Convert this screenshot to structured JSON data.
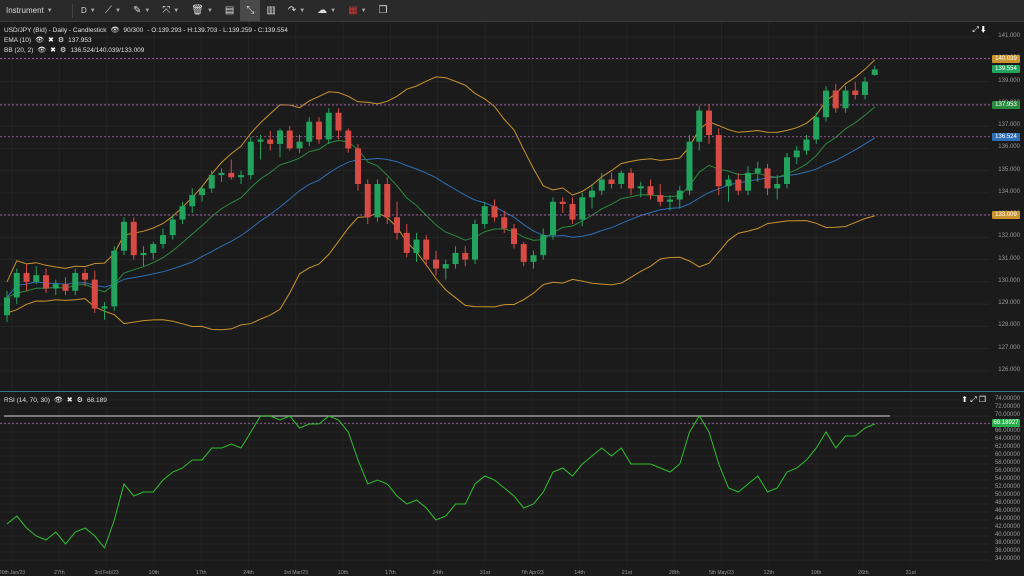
{
  "toolbar": {
    "instrument": "Instrument",
    "timeframe": "D",
    "icons": [
      "line-tool-icon",
      "pencil-icon",
      "crosshair-icon",
      "trash-icon",
      "layout-icon",
      "fit-icon",
      "bar-chart-icon",
      "share-icon",
      "weather-icon",
      "flag-icon",
      "popout-icon"
    ]
  },
  "main": {
    "legend": {
      "symbol": "USD/JPY (Bid) - Daily - Candlestick",
      "count": "90/300",
      "ohlc": "- O:139.293 - H:139.703 - L:139.259 - C:139.554"
    },
    "ema": {
      "label": "EMA (10)",
      "value": "137.953"
    },
    "bb": {
      "label": "BB (20, 2)",
      "value": "136.524/140.039/133.009"
    },
    "axis": [
      "141.000",
      "140.000",
      "139.000",
      "138.000",
      "137.000",
      "136.000",
      "135.000",
      "134.000",
      "133.000",
      "132.000",
      "131.000",
      "130.000",
      "129.000",
      "128.000",
      "127.000",
      "126.000"
    ],
    "tags": {
      "upper": {
        "text": "140.039",
        "color": "#c9932d"
      },
      "close": {
        "text": "139.554",
        "color": "#22a35e"
      },
      "ema": {
        "text": "137.953",
        "color": "#2a8a3e"
      },
      "mid": {
        "text": "136.524",
        "color": "#2e6fb5"
      },
      "lower": {
        "text": "133.009",
        "color": "#c9932d"
      }
    }
  },
  "rsi": {
    "legend": {
      "label": "RSI (14, 70, 30)",
      "value": "68.189"
    },
    "axis": [
      "74.00000",
      "72.00000",
      "70.00000",
      "68.00000",
      "66.00000",
      "64.00000",
      "62.00000",
      "60.00000",
      "58.00000",
      "56.00000",
      "54.00000",
      "52.00000",
      "50.00000",
      "48.00000",
      "46.00000",
      "44.00000",
      "42.00000",
      "40.00000",
      "38.00000",
      "36.00000",
      "34.00000"
    ],
    "tag": {
      "text": "68.18927",
      "color": "#28b14a"
    }
  },
  "dates": [
    {
      "d": "20th",
      "m": "Jan/23"
    },
    {
      "d": "27th",
      "m": ""
    },
    {
      "d": "3rd",
      "m": "Feb/23"
    },
    {
      "d": "10th",
      "m": ""
    },
    {
      "d": "17th",
      "m": ""
    },
    {
      "d": "24th",
      "m": ""
    },
    {
      "d": "3rd",
      "m": "Mar/23"
    },
    {
      "d": "10th",
      "m": ""
    },
    {
      "d": "17th",
      "m": ""
    },
    {
      "d": "24th",
      "m": ""
    },
    {
      "d": "31st",
      "m": ""
    },
    {
      "d": "7th",
      "m": "Apr/23"
    },
    {
      "d": "14th",
      "m": ""
    },
    {
      "d": "21st",
      "m": ""
    },
    {
      "d": "28th",
      "m": ""
    },
    {
      "d": "5th",
      "m": "May/23"
    },
    {
      "d": "12th",
      "m": ""
    },
    {
      "d": "19th",
      "m": ""
    },
    {
      "d": "26th",
      "m": ""
    },
    {
      "d": "31st",
      "m": ""
    }
  ],
  "chart_data": {
    "type": "candlestick",
    "price_range": [
      125.5,
      141.5
    ],
    "candles": [
      [
        128.5,
        129.6,
        128.2,
        129.3
      ],
      [
        129.3,
        130.6,
        129.0,
        130.4
      ],
      [
        130.4,
        130.8,
        129.6,
        130.0
      ],
      [
        130.0,
        130.7,
        129.9,
        130.3
      ],
      [
        130.3,
        130.6,
        129.5,
        129.7
      ],
      [
        129.7,
        130.1,
        129.4,
        129.9
      ],
      [
        129.9,
        130.2,
        129.4,
        129.6
      ],
      [
        129.6,
        130.6,
        129.4,
        130.4
      ],
      [
        130.4,
        130.6,
        129.8,
        130.1
      ],
      [
        130.1,
        130.5,
        128.6,
        128.8
      ],
      [
        128.8,
        129.1,
        128.3,
        128.9
      ],
      [
        128.9,
        131.6,
        128.7,
        131.4
      ],
      [
        131.4,
        132.9,
        131.2,
        132.7
      ],
      [
        132.7,
        132.9,
        131.0,
        131.2
      ],
      [
        131.2,
        131.6,
        130.7,
        131.3
      ],
      [
        131.3,
        131.8,
        131.0,
        131.7
      ],
      [
        131.7,
        132.4,
        131.5,
        132.1
      ],
      [
        132.1,
        133.0,
        131.9,
        132.8
      ],
      [
        132.8,
        133.6,
        132.6,
        133.4
      ],
      [
        133.4,
        134.2,
        133.1,
        133.9
      ],
      [
        133.9,
        134.3,
        133.6,
        134.2
      ],
      [
        134.2,
        135.0,
        134.0,
        134.8
      ],
      [
        134.8,
        135.1,
        134.5,
        134.9
      ],
      [
        134.9,
        135.5,
        134.6,
        134.7
      ],
      [
        134.7,
        135.0,
        134.4,
        134.8
      ],
      [
        134.8,
        136.5,
        134.6,
        136.3
      ],
      [
        136.3,
        136.6,
        135.5,
        136.4
      ],
      [
        136.4,
        136.8,
        135.9,
        136.2
      ],
      [
        136.2,
        136.9,
        135.6,
        136.8
      ],
      [
        136.8,
        137.0,
        135.9,
        136.0
      ],
      [
        136.0,
        136.6,
        135.8,
        136.3
      ],
      [
        136.3,
        137.4,
        136.1,
        137.2
      ],
      [
        137.2,
        137.4,
        136.2,
        136.4
      ],
      [
        136.4,
        137.8,
        136.2,
        137.6
      ],
      [
        137.6,
        137.8,
        136.4,
        136.8
      ],
      [
        136.8,
        136.9,
        135.8,
        136.0
      ],
      [
        136.0,
        136.2,
        134.1,
        134.4
      ],
      [
        134.4,
        134.6,
        132.6,
        132.9
      ],
      [
        132.9,
        134.6,
        132.7,
        134.4
      ],
      [
        134.4,
        134.7,
        132.6,
        132.9
      ],
      [
        132.9,
        133.6,
        131.9,
        132.2
      ],
      [
        132.2,
        132.6,
        131.1,
        131.3
      ],
      [
        131.3,
        132.2,
        130.9,
        131.9
      ],
      [
        131.9,
        132.1,
        130.7,
        131.0
      ],
      [
        131.0,
        131.4,
        130.3,
        130.6
      ],
      [
        130.6,
        131.0,
        130.1,
        130.8
      ],
      [
        130.8,
        131.6,
        130.6,
        131.3
      ],
      [
        131.3,
        131.6,
        130.7,
        131.0
      ],
      [
        131.0,
        132.8,
        130.8,
        132.6
      ],
      [
        132.6,
        133.6,
        132.4,
        133.4
      ],
      [
        133.4,
        133.7,
        132.7,
        132.9
      ],
      [
        132.9,
        133.2,
        132.2,
        132.4
      ],
      [
        132.4,
        132.6,
        131.5,
        131.7
      ],
      [
        131.7,
        131.8,
        130.7,
        130.9
      ],
      [
        130.9,
        131.4,
        130.6,
        131.2
      ],
      [
        131.2,
        132.4,
        131.0,
        132.1
      ],
      [
        132.1,
        133.8,
        131.9,
        133.6
      ],
      [
        133.6,
        133.8,
        133.1,
        133.5
      ],
      [
        133.5,
        133.8,
        132.6,
        132.8
      ],
      [
        132.8,
        134.0,
        132.5,
        133.8
      ],
      [
        133.8,
        134.4,
        133.3,
        134.1
      ],
      [
        134.1,
        134.9,
        133.9,
        134.6
      ],
      [
        134.6,
        134.9,
        134.2,
        134.4
      ],
      [
        134.4,
        135.0,
        134.2,
        134.9
      ],
      [
        134.9,
        135.1,
        133.9,
        134.2
      ],
      [
        134.2,
        134.5,
        133.8,
        134.3
      ],
      [
        134.3,
        134.6,
        133.7,
        133.9
      ],
      [
        133.9,
        134.4,
        133.4,
        133.6
      ],
      [
        133.6,
        133.9,
        133.2,
        133.7
      ],
      [
        133.7,
        134.3,
        133.3,
        134.1
      ],
      [
        134.1,
        136.6,
        133.9,
        136.3
      ],
      [
        136.3,
        137.9,
        135.9,
        137.7
      ],
      [
        137.7,
        138.0,
        136.2,
        136.6
      ],
      [
        136.6,
        136.9,
        133.9,
        134.3
      ],
      [
        134.3,
        134.8,
        133.6,
        134.6
      ],
      [
        134.6,
        134.9,
        133.9,
        134.1
      ],
      [
        134.1,
        135.2,
        133.9,
        134.9
      ],
      [
        134.9,
        135.4,
        134.5,
        135.1
      ],
      [
        135.1,
        135.3,
        133.9,
        134.2
      ],
      [
        134.2,
        134.8,
        133.7,
        134.4
      ],
      [
        134.4,
        135.8,
        134.2,
        135.6
      ],
      [
        135.6,
        136.1,
        135.3,
        135.9
      ],
      [
        135.9,
        136.6,
        135.7,
        136.4
      ],
      [
        136.4,
        137.6,
        136.2,
        137.4
      ],
      [
        137.4,
        138.8,
        137.2,
        138.6
      ],
      [
        138.6,
        138.9,
        137.6,
        137.8
      ],
      [
        137.8,
        138.8,
        137.6,
        138.6
      ],
      [
        138.6,
        139.0,
        138.2,
        138.4
      ],
      [
        138.4,
        139.2,
        138.2,
        139.0
      ],
      [
        139.3,
        139.7,
        139.26,
        139.55
      ]
    ],
    "rsi_range": [
      33.5,
      74.5
    ],
    "rsi": [
      43,
      45,
      42,
      40,
      39,
      41,
      38,
      41,
      42,
      40,
      37,
      44,
      53,
      50,
      51,
      51,
      54,
      56,
      57,
      59,
      59,
      62,
      62,
      63,
      62,
      66,
      70,
      70,
      69,
      70,
      67,
      68,
      68,
      70,
      69,
      66,
      59,
      53,
      54,
      53,
      50,
      48,
      49,
      47,
      44,
      45,
      48,
      48,
      53,
      55,
      54,
      52,
      50,
      47,
      48,
      51,
      56,
      57,
      55,
      58,
      60,
      62,
      60,
      62,
      58,
      58,
      58,
      57,
      56,
      58,
      66,
      70,
      66,
      58,
      52,
      51,
      53,
      55,
      51,
      52,
      56,
      57,
      59,
      62,
      66,
      62,
      65,
      65,
      67,
      68
    ],
    "levels": {
      "upper": 140.039,
      "close": 139.554,
      "ema": 137.953,
      "mid": 136.524,
      "lower": 133.009
    },
    "rsi_level": 68.19
  }
}
